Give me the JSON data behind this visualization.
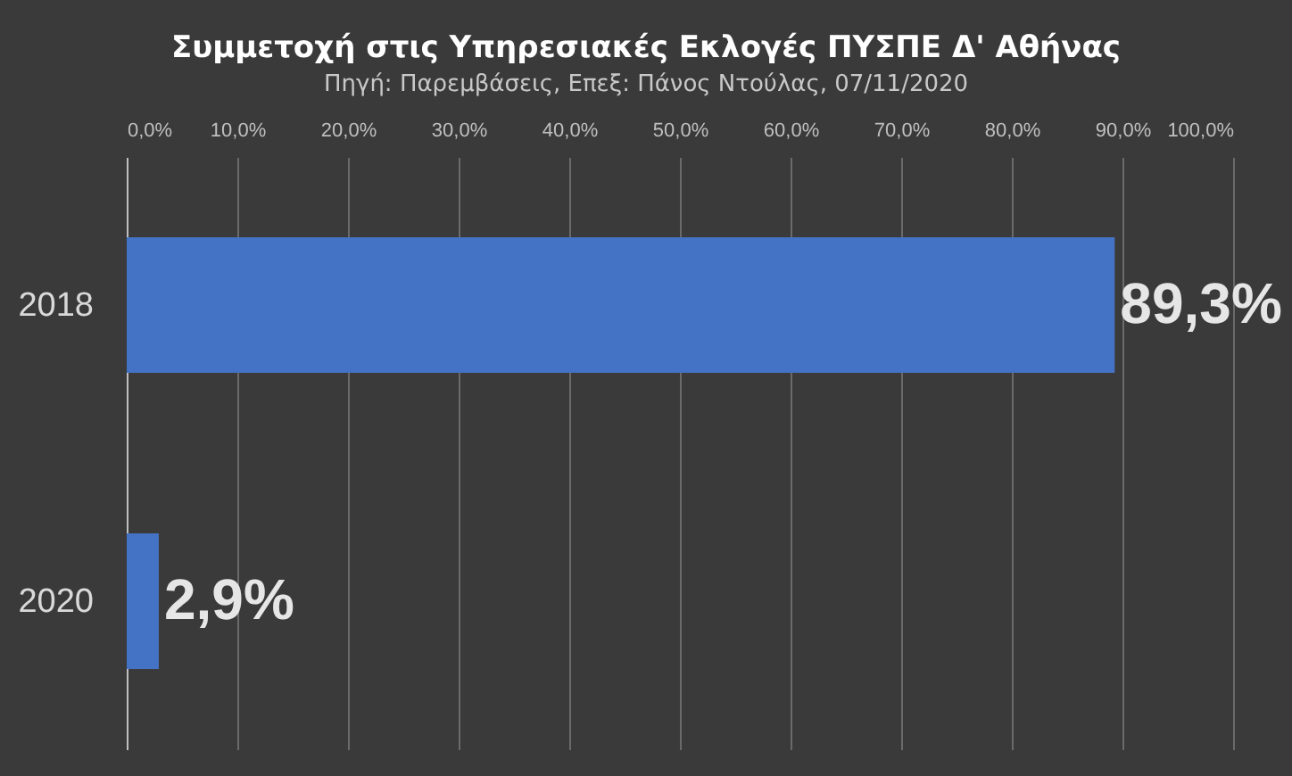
{
  "chart_data": {
    "type": "bar",
    "orientation": "horizontal",
    "title": "Συμμετοχή  στις Υπηρεσιακές  Εκλογές ΠΥΣΠΕ Δ' Αθήνας",
    "subtitle": "Πηγή: Παρεμβάσεις, Επεξ: Πάνος Ντούλας, 07/11/2020",
    "categories": [
      "2018",
      "2020"
    ],
    "values": [
      89.3,
      2.9
    ],
    "value_labels": [
      "89,3%",
      "2,9%"
    ],
    "color": "#4472c4",
    "xlim": [
      0,
      100
    ],
    "xticks": [
      {
        "value": 0,
        "label": "0,0%"
      },
      {
        "value": 10,
        "label": "10,0%"
      },
      {
        "value": 20,
        "label": "20,0%"
      },
      {
        "value": 30,
        "label": "30,0%"
      },
      {
        "value": 40,
        "label": "40,0%"
      },
      {
        "value": 50,
        "label": "50,0%"
      },
      {
        "value": 60,
        "label": "60,0%"
      },
      {
        "value": 70,
        "label": "70,0%"
      },
      {
        "value": 80,
        "label": "80,0%"
      },
      {
        "value": 90,
        "label": "90,0%"
      },
      {
        "value": 100,
        "label": "100,0%"
      }
    ],
    "grid": "x"
  }
}
